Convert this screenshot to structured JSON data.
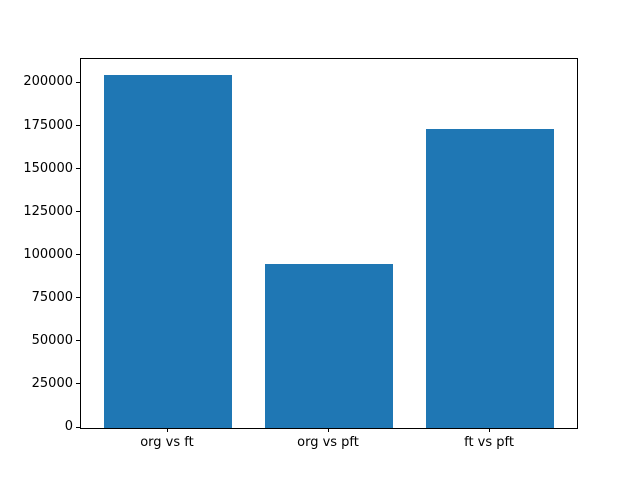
{
  "chart_data": {
    "type": "bar",
    "categories": [
      "org vs ft",
      "org vs pft",
      "ft vs pft"
    ],
    "values": [
      204800,
      95200,
      173300
    ],
    "title": "",
    "xlabel": "",
    "ylabel": "",
    "ylim": [
      0,
      214200
    ],
    "yticks": [
      0,
      25000,
      50000,
      75000,
      100000,
      125000,
      150000,
      175000,
      200000
    ],
    "ytick_labels": [
      "0",
      "25000",
      "50000",
      "75000",
      "100000",
      "125000",
      "150000",
      "175000",
      "200000"
    ],
    "bar_color": "#1f77b4",
    "bar_width_fraction": 0.8,
    "grid": false,
    "legend": null,
    "background_color": "#ffffff",
    "spine_color": "#000000"
  }
}
